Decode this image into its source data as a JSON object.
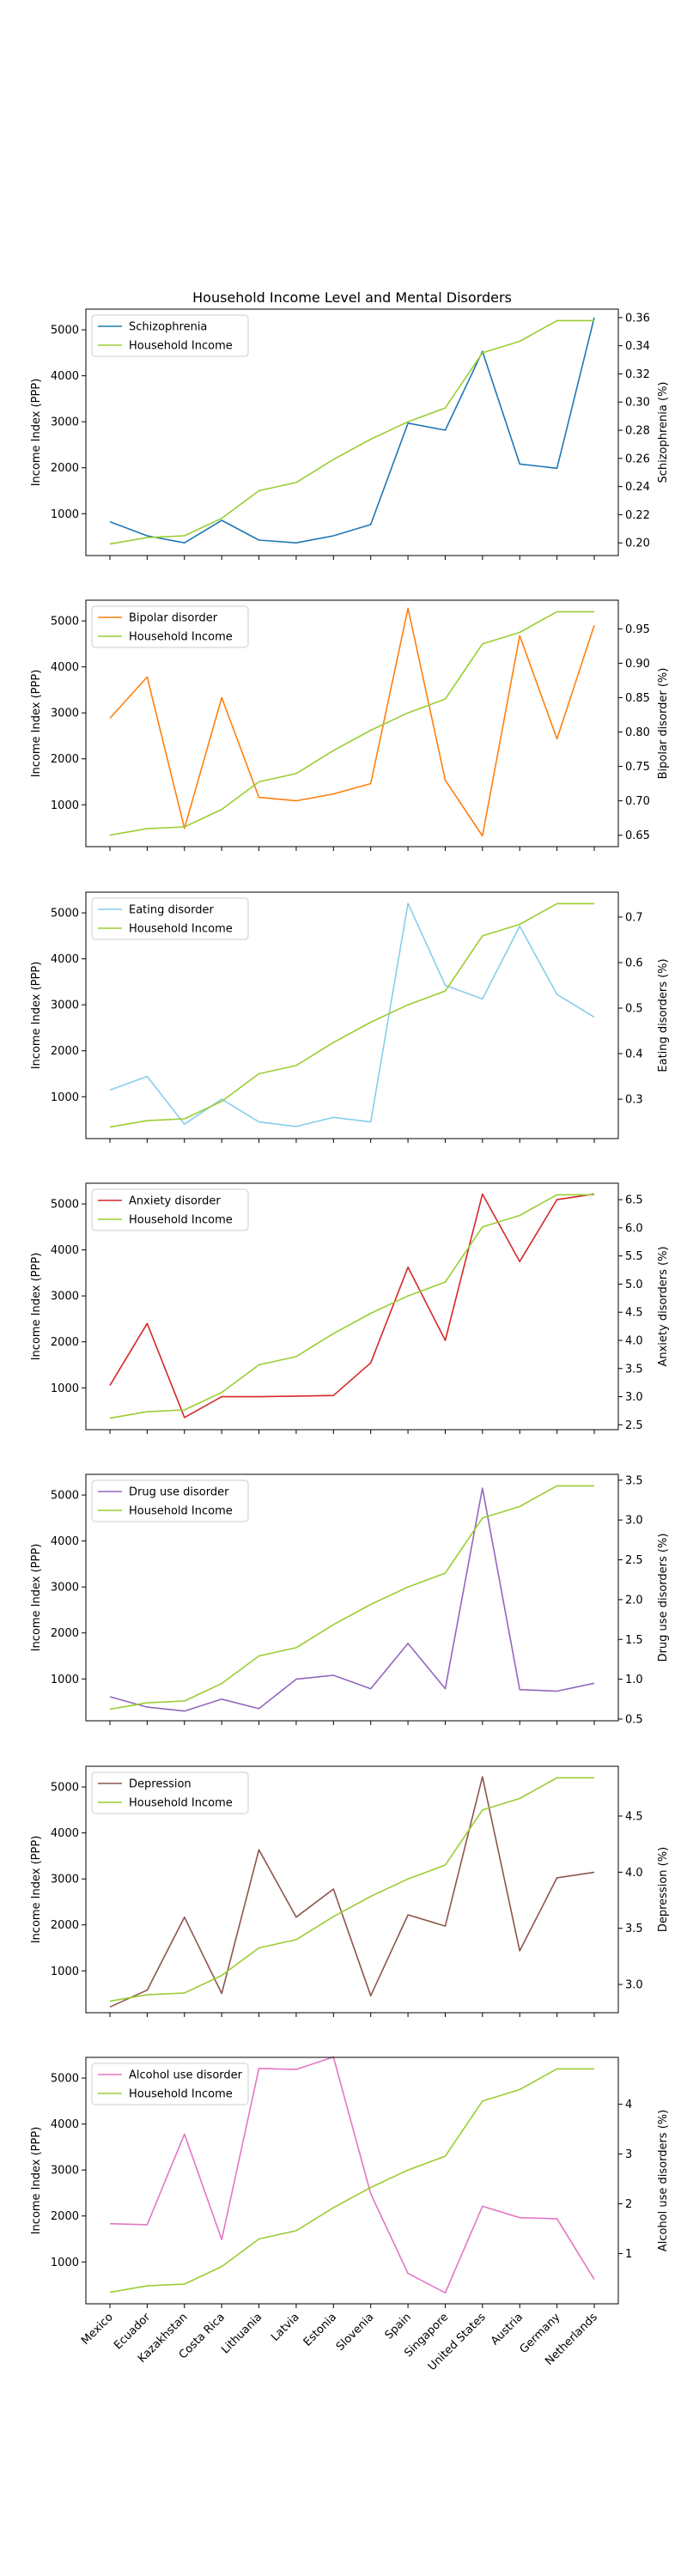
{
  "chart_data": {
    "type": "line",
    "title": "Household Income Level and Mental Disorders",
    "categories": [
      "Mexico",
      "Ecuador",
      "Kazakhstan",
      "Costa Rica",
      "Lithuania",
      "Latvia",
      "Estonia",
      "Slovenia",
      "Spain",
      "Singapore",
      "United States",
      "Austria",
      "Germany",
      "Netherlands"
    ],
    "income_series": {
      "name": "Household Income",
      "color": "#9acd32",
      "values": [
        340,
        480,
        520,
        900,
        1500,
        1680,
        2180,
        2620,
        3000,
        3300,
        4500,
        4750,
        5200,
        5200
      ]
    },
    "ylabel_left": "Income Index (PPP)",
    "yticks_left": [
      1000,
      2000,
      3000,
      4000,
      5000
    ],
    "ylim_left": [
      90,
      5450
    ],
    "panels": [
      {
        "name": "Schizophrenia",
        "ylabel_right": "Schizophrenia (%)",
        "color": "#1f77b4",
        "ylim_right": [
          0.191,
          0.366
        ],
        "yticks_right": [
          0.2,
          0.22,
          0.24,
          0.26,
          0.28,
          0.3,
          0.32,
          0.34,
          0.36
        ],
        "tick_labels_right": [
          "0.20",
          "0.22",
          "0.24",
          "0.26",
          "0.28",
          "0.30",
          "0.32",
          "0.34",
          "0.36"
        ],
        "values": [
          0.215,
          0.205,
          0.2,
          0.216,
          0.202,
          0.2,
          0.205,
          0.213,
          0.285,
          0.28,
          0.336,
          0.256,
          0.253,
          0.36
        ]
      },
      {
        "name": "Bipolar disorder",
        "ylabel_right": "Bipolar disorder (%)",
        "color": "#ff7f0e",
        "ylim_right": [
          0.6334,
          0.9916
        ],
        "yticks_right": [
          0.65,
          0.7,
          0.75,
          0.8,
          0.85,
          0.9,
          0.95
        ],
        "tick_labels_right": [
          "0.65",
          "0.70",
          "0.75",
          "0.80",
          "0.85",
          "0.90",
          "0.95"
        ],
        "values": [
          0.82,
          0.88,
          0.66,
          0.85,
          0.705,
          0.7,
          0.71,
          0.725,
          0.98,
          0.73,
          0.649,
          0.94,
          0.79,
          0.955
        ]
      },
      {
        "name": "Eating disorder",
        "ylabel_right": "Eating disorders (%)",
        "color": "#87ceeb",
        "ylim_right": [
          0.2134,
          0.7547
        ],
        "yticks_right": [
          0.3,
          0.4,
          0.5,
          0.6,
          0.7
        ],
        "tick_labels_right": [
          "0.3",
          "0.4",
          "0.5",
          "0.6",
          "0.7"
        ],
        "values": [
          0.32,
          0.35,
          0.245,
          0.3,
          0.25,
          0.24,
          0.26,
          0.25,
          0.73,
          0.55,
          0.52,
          0.68,
          0.53,
          0.48
        ]
      },
      {
        "name": "Anxiety disorder",
        "ylabel_right": "Anxiety disorders (%)",
        "color": "#d62728",
        "ylim_right": [
          2.4136,
          6.7917
        ],
        "yticks_right": [
          2.5,
          3.0,
          3.5,
          4.0,
          4.5,
          5.0,
          5.5,
          6.0,
          6.5
        ],
        "tick_labels_right": [
          "2.5",
          "3.0",
          "3.5",
          "4.0",
          "4.5",
          "5.0",
          "5.5",
          "6.0",
          "6.5"
        ],
        "values": [
          3.2,
          4.3,
          2.63,
          3.0,
          3.0,
          3.01,
          3.02,
          3.6,
          5.3,
          4.0,
          6.6,
          5.4,
          6.5,
          6.6
        ]
      },
      {
        "name": "Drug use disorder",
        "ylabel_right": "Drug use disorders (%)",
        "color": "#9467bd",
        "ylim_right": [
          0.4782,
          3.5733
        ],
        "yticks_right": [
          0.5,
          1.0,
          1.5,
          2.0,
          2.5,
          3.0,
          3.5
        ],
        "tick_labels_right": [
          "0.5",
          "1.0",
          "1.5",
          "2.0",
          "2.5",
          "3.0",
          "3.5"
        ],
        "values": [
          0.78,
          0.65,
          0.6,
          0.75,
          0.63,
          1.0,
          1.05,
          0.88,
          1.45,
          0.88,
          3.4,
          0.87,
          0.85,
          0.95
        ]
      },
      {
        "name": "Depression",
        "ylabel_right": "Depression (%)",
        "color": "#8c564b",
        "ylim_right": [
          2.7485,
          4.9434
        ],
        "yticks_right": [
          3.0,
          3.5,
          4.0,
          4.5
        ],
        "tick_labels_right": [
          "3.0",
          "3.5",
          "4.0",
          "4.5"
        ],
        "values": [
          2.8,
          2.95,
          3.6,
          2.92,
          4.2,
          3.6,
          3.85,
          2.9,
          3.62,
          3.52,
          4.85,
          3.3,
          3.95,
          4.0
        ]
      },
      {
        "name": "Alcohol use disorder",
        "ylabel_right": "Alcohol use disorders (%)",
        "color": "#e377c2",
        "ylim_right": [
          -0.0106,
          4.9434
        ],
        "yticks_right": [
          1,
          2,
          3,
          4
        ],
        "tick_labels_right": [
          "1",
          "2",
          "3",
          "4"
        ],
        "values": [
          1.6,
          1.58,
          3.4,
          1.28,
          4.72,
          4.7,
          4.95,
          2.2,
          0.6,
          0.21,
          1.95,
          1.72,
          1.7,
          0.48
        ]
      }
    ],
    "legend_position": "upper left",
    "grid": false
  }
}
